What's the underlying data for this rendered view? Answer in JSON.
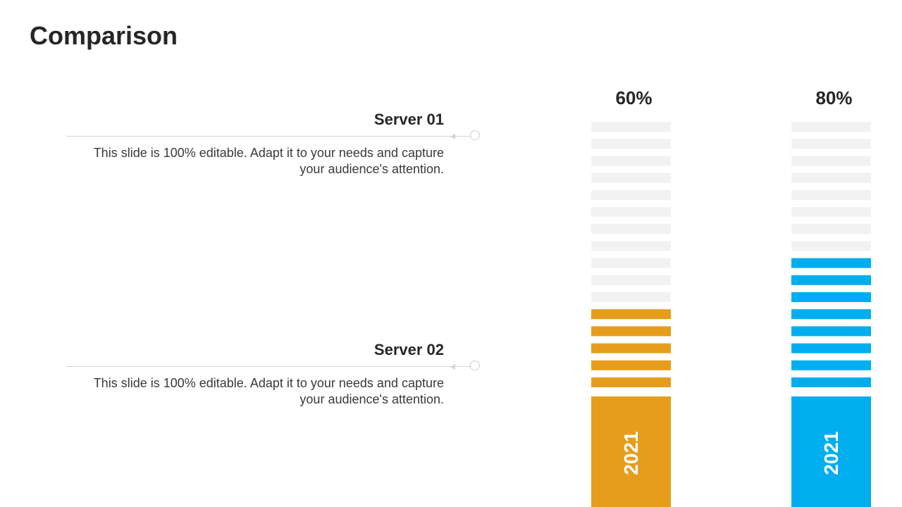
{
  "slide": {
    "title": "Comparison"
  },
  "servers": [
    {
      "heading": "Server 01",
      "description_line1": "This slide is 100% editable. Adapt it to your needs and capture",
      "description_line2": "your audience's attention."
    },
    {
      "heading": "Server 02",
      "description_line1": "This slide is 100% editable. Adapt it to your needs and capture",
      "description_line2": "your audience's attention."
    }
  ],
  "chart_data": {
    "type": "bar",
    "categories": [
      "2021",
      "2021"
    ],
    "values": [
      60,
      80
    ],
    "value_labels": [
      "60%",
      "80%"
    ],
    "ylim": [
      0,
      100
    ],
    "segments": 15,
    "colors": [
      "#E69D1C",
      "#00AEEF"
    ],
    "track_color": "#F2F2F2"
  }
}
